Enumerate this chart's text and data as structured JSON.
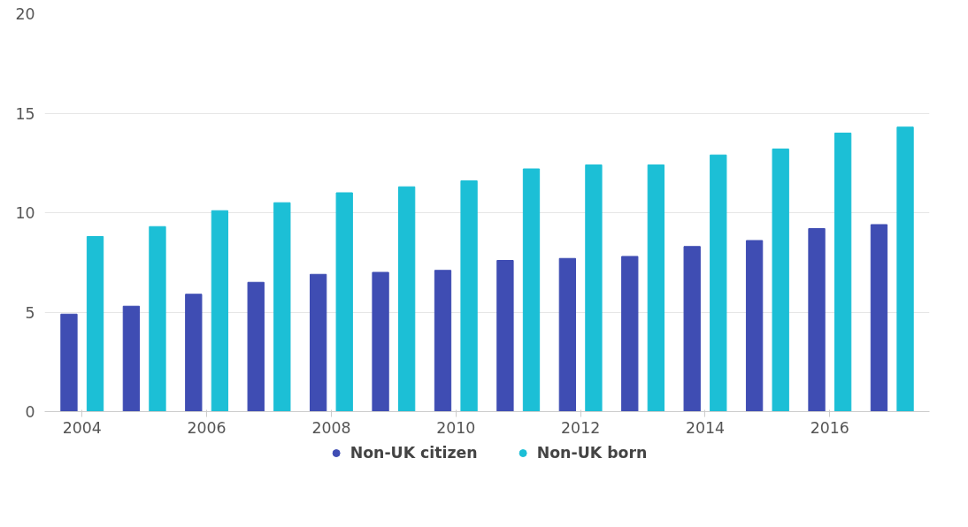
{
  "chart_data": {
    "type": "bar",
    "x": [
      2004,
      2005,
      2006,
      2007,
      2008,
      2009,
      2010,
      2011,
      2012,
      2013,
      2014,
      2015,
      2016,
      2017
    ],
    "series": [
      {
        "name": "Non-UK citizen",
        "color": "#3f4db3",
        "values": [
          4.9,
          5.3,
          5.9,
          6.5,
          6.9,
          7.0,
          7.1,
          7.6,
          7.7,
          7.8,
          8.3,
          8.6,
          9.2,
          9.4
        ]
      },
      {
        "name": "Non-UK born",
        "color": "#1cbfd6",
        "values": [
          8.8,
          9.3,
          10.1,
          10.5,
          11.0,
          11.3,
          11.6,
          12.2,
          12.4,
          12.4,
          12.9,
          13.2,
          14.0,
          14.3
        ]
      }
    ],
    "xlim": [
      2003.4,
      2017.6
    ],
    "xticks": [
      2004,
      2006,
      2008,
      2010,
      2012,
      2014,
      2016
    ],
    "ylim": [
      0,
      20
    ],
    "yticks": [
      0,
      5,
      10,
      15,
      20
    ],
    "grid": "y",
    "legend": "bottom"
  }
}
